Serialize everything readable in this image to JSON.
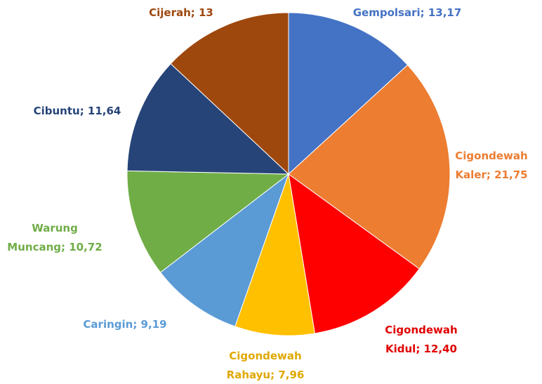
{
  "chart_data": {
    "type": "pie",
    "values": [
      13.17,
      21.75,
      12.4,
      7.96,
      9.19,
      10.72,
      11.64,
      13
    ],
    "value_labels": [
      "Gempolsari; 13,17",
      "Cigondewah\nKaler; 21,75",
      "Cigondewah\nKidul; 12,40",
      "Cigondewah\nRahayu; 7,96",
      "Caringin; 9,19",
      "Warung\nMuncang; 10,72",
      "Cibuntu; 11,64",
      "Cijerah; 13"
    ],
    "colors": [
      "#4472c4",
      "#ed7d31",
      "#ff0000",
      "#ffc000",
      "#5b9bd5",
      "#70ad47",
      "#264478",
      "#9e480e"
    ],
    "label_colors": [
      "#4472c4",
      "#ed7d31",
      "#e00000",
      "#e0a800",
      "#5b9bd5",
      "#70ad47",
      "#264478",
      "#9e480e"
    ]
  }
}
